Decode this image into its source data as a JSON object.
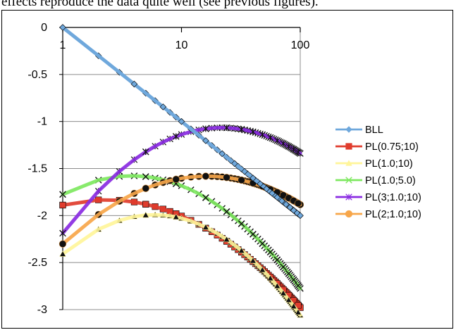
{
  "caption_fragment": "effects reproduce the data quite well (see previous figures).",
  "chart_data": {
    "type": "line",
    "x_scale": "log",
    "xlim": [
      1,
      100
    ],
    "ylim": [
      -3,
      0
    ],
    "x_ticks": [
      "1",
      "10",
      "100"
    ],
    "y_ticks": [
      "0",
      "-0.5",
      "-1",
      "-1.5",
      "-2",
      "-2.5",
      "-3"
    ],
    "grid": "horizontal",
    "legend_position": "right",
    "x": [
      1,
      2,
      3,
      4,
      5,
      6,
      7,
      8,
      9,
      10,
      12,
      14,
      16,
      18,
      20,
      22,
      24,
      26,
      28,
      30,
      32,
      34,
      36,
      38,
      40,
      42,
      44,
      46,
      48,
      50,
      52,
      54,
      56,
      58,
      60,
      62,
      64,
      66,
      68,
      70,
      72,
      74,
      76,
      78,
      80,
      82,
      84,
      86,
      88,
      90,
      92,
      94,
      96,
      98,
      100
    ],
    "series": [
      {
        "name": "BLL",
        "color": "#6fa8dc",
        "marker": "diamond",
        "line_width": 5,
        "curve": {
          "kind": "power",
          "a": 0.0,
          "b": -1.0
        }
      },
      {
        "name": "PL(0.75;10)",
        "color": "#e03c2d",
        "marker": "square",
        "line_width": 5,
        "curve": {
          "kind": "poly",
          "c0": -1.889,
          "c1": 0.313,
          "c2": -0.429
        }
      },
      {
        "name": "PL(1.0;10)",
        "color": "#fff59a",
        "marker": "triangle",
        "line_width": 5,
        "curve": {
          "kind": "poly",
          "c0": -2.409,
          "c1": 1.085,
          "c2": -0.705
        }
      },
      {
        "name": "PL(1.0;5.0)",
        "color": "#7ee860",
        "marker": "x",
        "line_width": 5,
        "curve": {
          "kind": "poly",
          "c0": -1.775,
          "c1": 0.684,
          "c2": -0.592
        }
      },
      {
        "name": "PL(3;1.0;10)",
        "color": "#8a2be2",
        "marker": "star",
        "line_width": 5,
        "curve": {
          "kind": "poly",
          "c0": -2.188,
          "c1": 1.676,
          "c2": -0.626
        }
      },
      {
        "name": "PL(2;1.0;10)",
        "color": "#f7a64a",
        "marker": "circle",
        "line_width": 5,
        "curve": {
          "kind": "poly",
          "c0": -2.302,
          "c1": 1.187,
          "c2": -0.489
        }
      }
    ]
  }
}
